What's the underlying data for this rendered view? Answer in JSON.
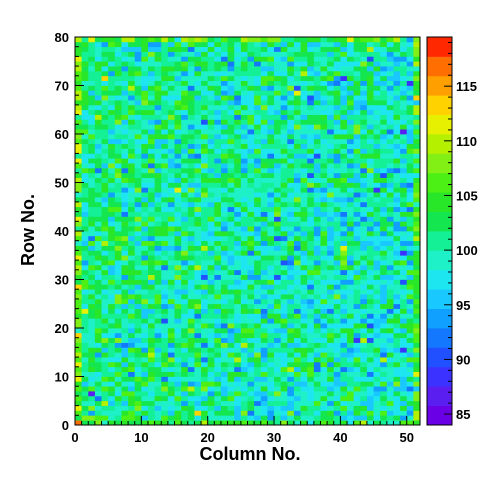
{
  "chart_data": {
    "type": "heatmap",
    "title": "",
    "xlabel": "Column No.",
    "ylabel": "Row No.",
    "xlim": [
      0,
      52
    ],
    "ylim": [
      0,
      80
    ],
    "x_ticks": [
      0,
      10,
      20,
      30,
      40,
      50
    ],
    "y_ticks": [
      0,
      10,
      20,
      30,
      40,
      50,
      60,
      70,
      80
    ],
    "n_columns": 52,
    "n_rows": 80,
    "value_range": [
      84,
      119.5
    ],
    "colorbar_ticks": [
      85,
      90,
      95,
      100,
      105,
      110,
      115
    ],
    "colorbar_steps": 20,
    "colorscale": "ROOT rainbow (purple-blue-cyan-green-yellow-orange-red)",
    "typical_value": 100,
    "noise_sigma": 3.5,
    "edge_columns_elevated": true,
    "values_note": "Per-cell values are noise around ~100 (not individually readable); cells rendered procedurally."
  }
}
